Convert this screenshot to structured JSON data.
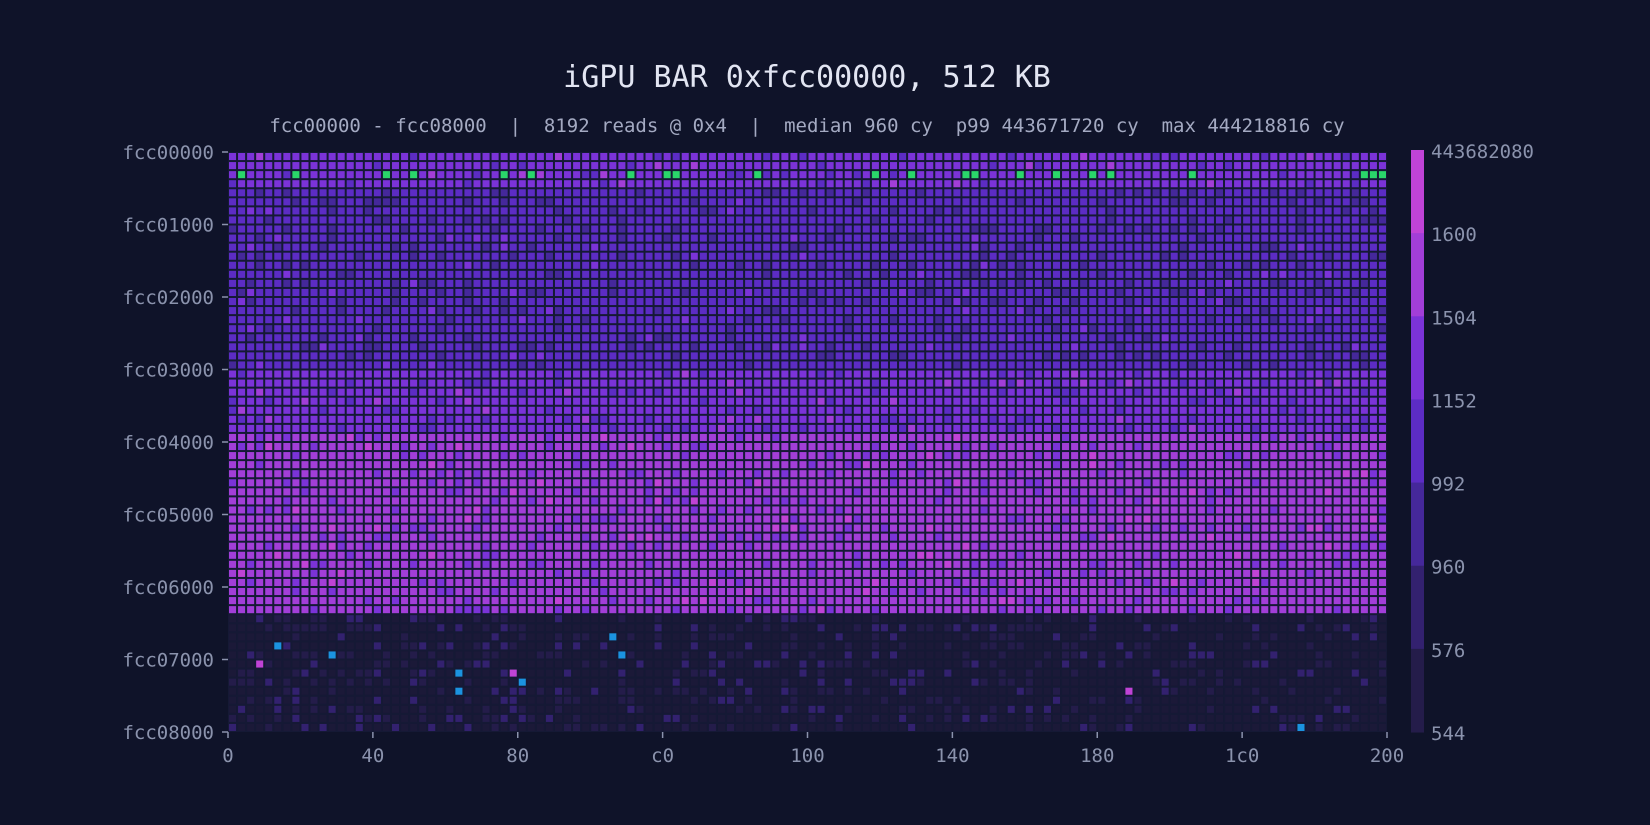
{
  "chart_data": {
    "type": "heatmap",
    "title": "iGPU BAR 0xfcc00000, 512 KB",
    "subtitle": "fcc00000 - fcc08000  |  8192 reads @ 0x4  |  median 960 cy  p99 443671720 cy  max 444218816 cy",
    "x_tick_labels": [
      "0",
      "40",
      "80",
      "c0",
      "100",
      "140",
      "180",
      "1c0",
      "200"
    ],
    "y_tick_labels": [
      "fcc00000",
      "fcc01000",
      "fcc02000",
      "fcc03000",
      "fcc04000",
      "fcc05000",
      "fcc06000",
      "fcc07000",
      "fcc08000"
    ],
    "colorbar": {
      "labels": [
        "443682080",
        "1600",
        "1504",
        "1152",
        "992",
        "960",
        "576",
        "544"
      ],
      "colors": [
        "#c043d6",
        "#a23ed8",
        "#7b33d8",
        "#5c2cc4",
        "#45289a",
        "#33216f",
        "#241c4a",
        "#1b1938"
      ]
    },
    "grid": {
      "columns": 128,
      "rows": 64,
      "column_step_bytes": 4,
      "row_step_bytes": 512
    },
    "region_levels": [
      {
        "rows": [
          0,
          4
        ],
        "level": "1504"
      },
      {
        "rows": [
          4,
          11
        ],
        "level": "1152"
      },
      {
        "rows": [
          11,
          24
        ],
        "level": "1152"
      },
      {
        "rows": [
          24,
          31
        ],
        "level": "1504"
      },
      {
        "rows": [
          31,
          51
        ],
        "level": "1600"
      },
      {
        "rows": [
          51,
          64
        ],
        "level": "544"
      }
    ],
    "outlier_color": "#2ad66a",
    "outlier_color_low": "#1b93e0"
  }
}
